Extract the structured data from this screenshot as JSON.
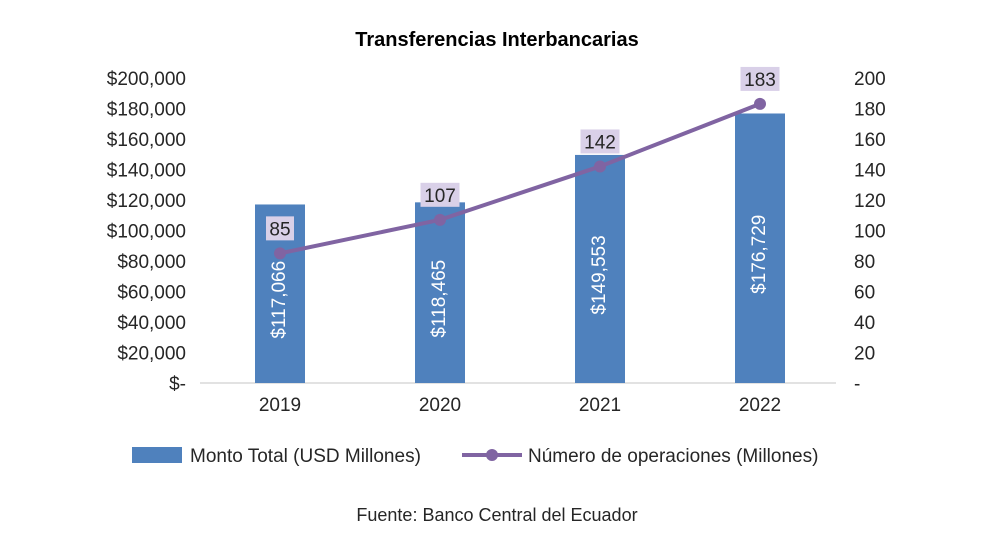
{
  "chart_data": {
    "type": "bar",
    "title": "Transferencias Interbancarias",
    "categories": [
      "2019",
      "2020",
      "2021",
      "2022"
    ],
    "series": [
      {
        "name": "Monto Total (USD Millones)",
        "type": "bar",
        "axis": "left",
        "values": [
          117066,
          118465,
          149553,
          176729
        ],
        "labels": [
          "$117,066",
          "$118,465",
          "$149,553",
          "$176,729"
        ],
        "color": "#4f81bd"
      },
      {
        "name": "Número de operaciones (Millones)",
        "type": "line",
        "axis": "right",
        "values": [
          85,
          107,
          142,
          183
        ],
        "labels": [
          "85",
          "107",
          "142",
          "183"
        ],
        "color": "#8064a2",
        "label_bg": "#d9d0e8"
      }
    ],
    "y_left": {
      "ylim": [
        0,
        200000
      ],
      "ticks": [
        "$-",
        "$20,000",
        "$40,000",
        "$60,000",
        "$80,000",
        "$100,000",
        "$120,000",
        "$140,000",
        "$160,000",
        "$180,000",
        "$200,000"
      ]
    },
    "y_right": {
      "ylim": [
        0,
        200
      ],
      "ticks": [
        "-",
        "20",
        "40",
        "60",
        "80",
        "100",
        "120",
        "140",
        "160",
        "180",
        "200"
      ]
    },
    "grid": false,
    "legend": "bottom",
    "source": "Fuente: Banco Central del Ecuador"
  }
}
